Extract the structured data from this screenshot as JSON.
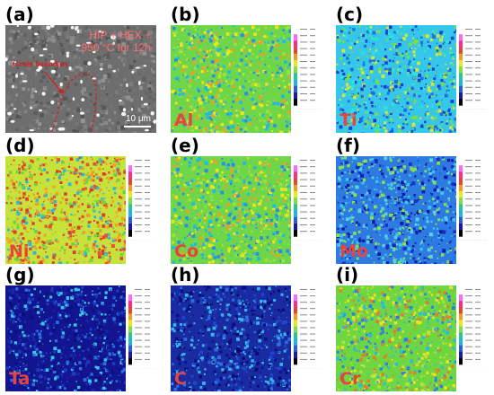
{
  "panels": [
    {
      "letter": "(a)",
      "kind": "sem",
      "caption_line1": "HIP + HEX +",
      "caption_line2": "950 °C for 12h",
      "arrow_label": "Grain boundary",
      "scale_bar": "10 μm"
    },
    {
      "letter": "(b)",
      "kind": "map",
      "element": "Al",
      "palette": "bright"
    },
    {
      "letter": "(c)",
      "kind": "map",
      "element": "Ti",
      "palette": "cool"
    },
    {
      "letter": "(d)",
      "kind": "map",
      "element": "Ni",
      "palette": "warm"
    },
    {
      "letter": "(e)",
      "kind": "map",
      "element": "Co",
      "palette": "bright"
    },
    {
      "letter": "(f)",
      "kind": "map",
      "element": "Mo",
      "palette": "blue"
    },
    {
      "letter": "(g)",
      "kind": "map",
      "element": "Ta",
      "palette": "darkblue"
    },
    {
      "letter": "(h)",
      "kind": "map",
      "element": "C",
      "palette": "navy"
    },
    {
      "letter": "(i)",
      "kind": "map",
      "element": "Cr",
      "palette": "mixed"
    }
  ],
  "colors": {
    "label_red": "#e8433c",
    "sem_caption": "#ff6b6b",
    "boundary_red": "#d61e1e"
  }
}
